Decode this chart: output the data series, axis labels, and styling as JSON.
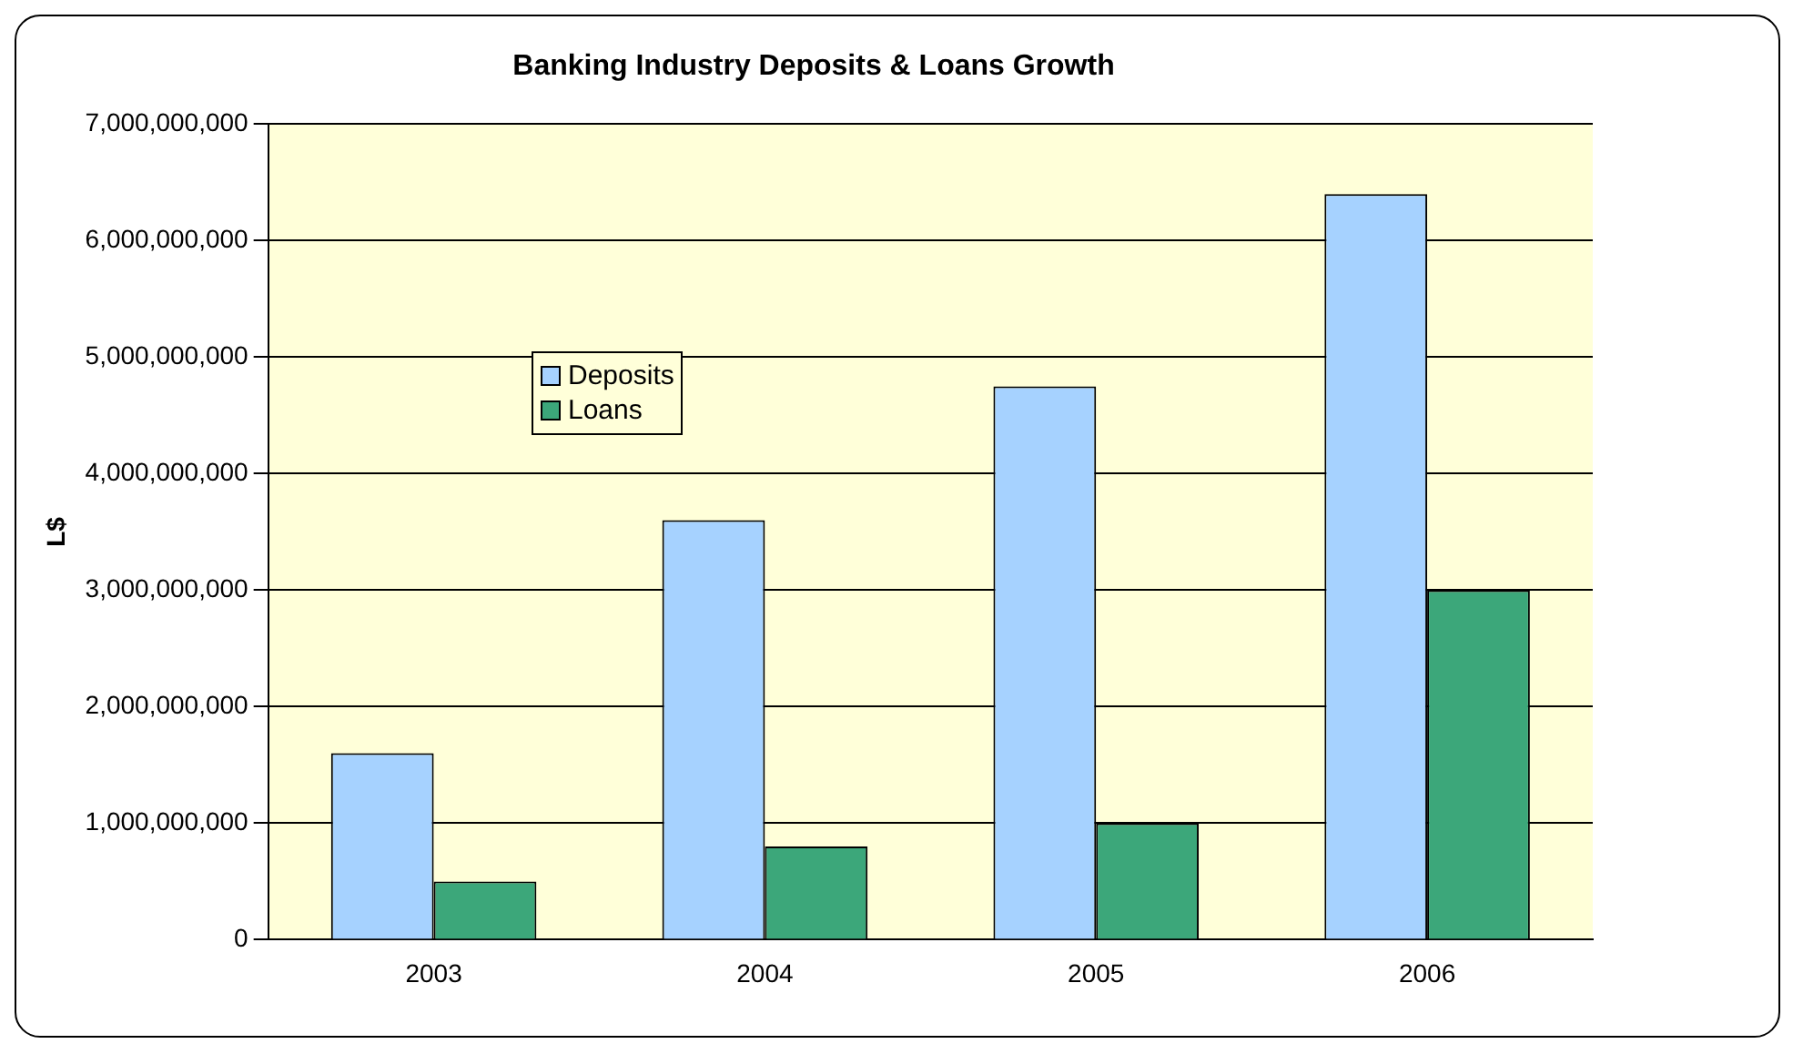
{
  "chart_data": {
    "type": "bar",
    "title": "Banking Industry Deposits & Loans Growth",
    "ylabel": "L$",
    "categories": [
      "2003",
      "2004",
      "2005",
      "2006"
    ],
    "series": [
      {
        "name": "Deposits",
        "color": "#a6d2ff",
        "values": [
          1600000000,
          3600000000,
          4750000000,
          6400000000
        ]
      },
      {
        "name": "Loans",
        "color": "#3ca77a",
        "values": [
          500000000,
          800000000,
          1000000000,
          3000000000
        ]
      }
    ],
    "ylim": [
      0,
      7000000000
    ],
    "yticks": [
      {
        "value": 0,
        "label": "0"
      },
      {
        "value": 1000000000,
        "label": "1,000,000,000"
      },
      {
        "value": 2000000000,
        "label": "2,000,000,000"
      },
      {
        "value": 3000000000,
        "label": "3,000,000,000"
      },
      {
        "value": 4000000000,
        "label": "4,000,000,000"
      },
      {
        "value": 5000000000,
        "label": "5,000,000,000"
      },
      {
        "value": 6000000000,
        "label": "6,000,000,000"
      },
      {
        "value": 7000000000,
        "label": "7,000,000,000"
      }
    ],
    "grid": "y",
    "legend": "top left"
  }
}
